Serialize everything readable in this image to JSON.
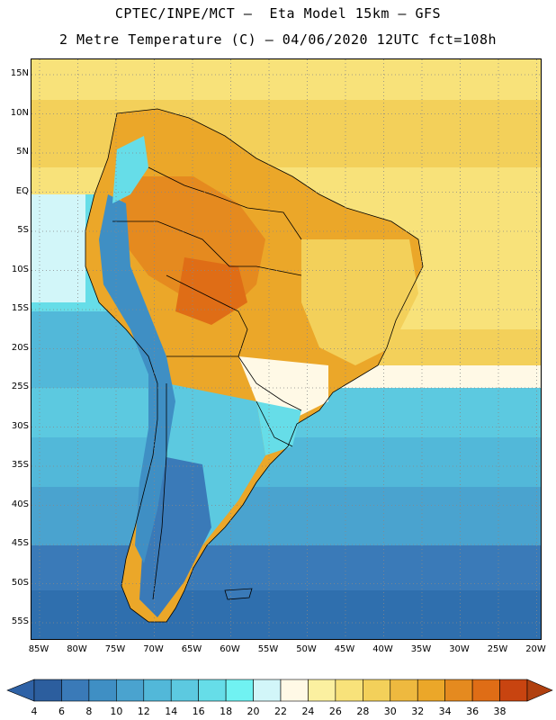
{
  "title_line1": "CPTEC/INPE/MCT –  Eta Model 15km – GFS",
  "title_line2": "2 Metre Temperature (C) – 04/06/2020 12UTC fct=108h",
  "lat_ticks": [
    "15N",
    "10N",
    "5N",
    "EQ",
    "5S",
    "10S",
    "15S",
    "20S",
    "25S",
    "30S",
    "35S",
    "40S",
    "45S",
    "50S",
    "55S"
  ],
  "lon_ticks": [
    "85W",
    "80W",
    "75W",
    "70W",
    "65W",
    "60W",
    "55W",
    "50W",
    "45W",
    "40W",
    "35W",
    "30W",
    "25W",
    "20W"
  ],
  "colorbar": {
    "labels": [
      "4",
      "6",
      "8",
      "10",
      "12",
      "14",
      "16",
      "18",
      "20",
      "22",
      "24",
      "26",
      "28",
      "30",
      "32",
      "34",
      "36",
      "38"
    ],
    "colors": [
      "#2c5e9e",
      "#3a7ab8",
      "#3f8fc4",
      "#4aa3cf",
      "#52b8d9",
      "#5cc9e0",
      "#66dde8",
      "#70f2f2",
      "#d2f6f9",
      "#fff9e6",
      "#fbf0a0",
      "#f8e27a",
      "#f3d05a",
      "#eeb93f",
      "#eba729",
      "#e58a1f",
      "#df6d16",
      "#c84410"
    ],
    "low_color": "#2f62a6",
    "high_color": "#b0400f"
  },
  "map_colors": {
    "ocean_deep": "#2f6fae",
    "ocean_mid": "#3f8fc4",
    "ocean_light": "#52b8d9",
    "ocean_cyan": "#5cc9e0",
    "tropical_ocean": "#f3d05a",
    "equator_ocean": "#f8e27a",
    "land_hot": "#eba729",
    "land_hotter": "#e58a1f",
    "land_warm": "#f3d05a",
    "andes": "#70a8d8",
    "patagonia": "#3a7ab8"
  }
}
